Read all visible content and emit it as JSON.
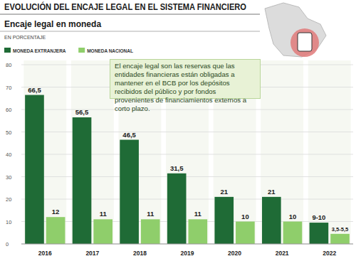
{
  "chart_data": {
    "type": "bar",
    "title": "EVOLUCIÓN DEL ENCAJE LEGAL EN EL SISTEMA FINANCIERO",
    "subtitle": "Encaje legal en moneda",
    "y_label": "EN PORCENTAJE",
    "annotation": "El encaje legal son las reservas que las entidades financieras están obligadas a mantener en el BCB por los depósitos recibidos del público y por fondos provenientes de financiamientos externos a corto plazo.",
    "categories": [
      "2016",
      "2017",
      "2018",
      "2019",
      "2020",
      "2021",
      "2022"
    ],
    "series": [
      {
        "name": "MONEDA EXTRANJERA",
        "color": "#1f6b36",
        "values": [
          66.5,
          56.5,
          46.5,
          31.5,
          21,
          21,
          9.5
        ],
        "value_labels": [
          "66,5",
          "56,5",
          "46,5",
          "31,5",
          "21",
          "21",
          "9-10"
        ]
      },
      {
        "name": "MONEDA NACIONAL",
        "color": "#8fce6b",
        "values": [
          12,
          11,
          11,
          11,
          10,
          10,
          4.5
        ],
        "value_labels": [
          "12",
          "11",
          "11",
          "11",
          "10",
          "10",
          "3,5-5,5"
        ]
      }
    ],
    "ylim": [
      0,
      80
    ],
    "yticks": [
      0,
      10,
      20,
      30,
      40,
      50,
      60,
      70,
      80
    ],
    "grid": true,
    "legend": "top-left",
    "data_labels": true
  }
}
